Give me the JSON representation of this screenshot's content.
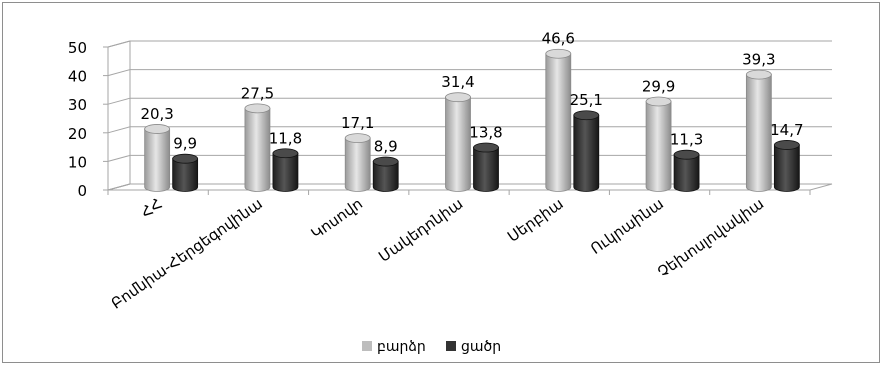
{
  "chart_data": {
    "type": "bar",
    "categories": [
      "ՀՀ",
      "Բոմնիա-Հերցեգովինա",
      "Կոսովո",
      "Մակեդոնիա",
      "Սերբիա",
      "Ուկրաինա",
      "Չեխոսլովակիա"
    ],
    "series": [
      {
        "name": "բարձր",
        "values": [
          20.3,
          27.5,
          17.1,
          31.4,
          46.6,
          29.9,
          39.3
        ]
      },
      {
        "name": "ցածր",
        "values": [
          9.9,
          11.8,
          8.9,
          13.8,
          25.1,
          11.3,
          14.7
        ]
      }
    ],
    "value_labels": [
      [
        "20,3",
        "27,5",
        "17,1",
        "31,4",
        "46,6",
        "29,9",
        "39,3"
      ],
      [
        "9,9",
        "11,8",
        "8,9",
        "13,8",
        "25,1",
        "11,3",
        "14,7"
      ]
    ],
    "y_ticks": [
      "0",
      "10",
      "20",
      "30",
      "40",
      "50"
    ],
    "ylim": [
      0,
      50
    ],
    "grid": true,
    "legend_position": "bottom",
    "title": "",
    "xlabel": "",
    "ylabel": "",
    "colors": {
      "series_high": "#bdbdbd",
      "series_low": "#333333",
      "grid": "#a6a6a6",
      "text": "#000000"
    }
  }
}
